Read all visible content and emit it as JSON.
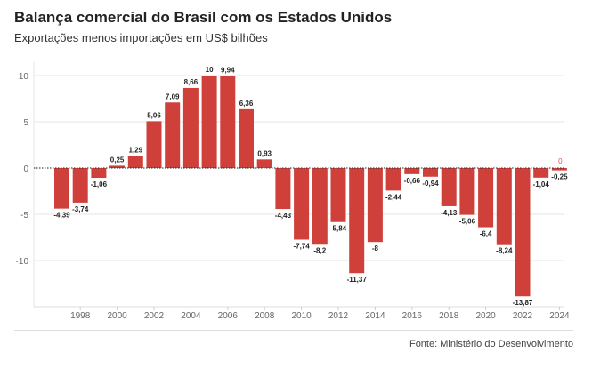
{
  "header": {
    "title": "Balança comercial do Brasil com os Estados Unidos",
    "subtitle": "Exportações menos importações em US$ bilhões"
  },
  "footer": {
    "source": "Fonte: Ministério do Desenvolvimento"
  },
  "colors": {
    "bar": "#d0403a",
    "zero_label": "#d9534f"
  },
  "chart_data": {
    "type": "bar",
    "title": "Balança comercial do Brasil com os Estados Unidos",
    "subtitle": "Exportações menos importações em US$ bilhões",
    "xlabel": "",
    "ylabel": "",
    "categories": [
      1997,
      1998,
      1999,
      2000,
      2001,
      2002,
      2003,
      2004,
      2005,
      2006,
      2007,
      2008,
      2009,
      2010,
      2011,
      2012,
      2013,
      2014,
      2015,
      2016,
      2017,
      2018,
      2019,
      2020,
      2021,
      2022,
      2023,
      2024
    ],
    "values": [
      -4.39,
      -3.74,
      -1.06,
      0.25,
      1.29,
      5.06,
      7.09,
      8.66,
      10,
      9.94,
      6.36,
      0.93,
      -4.43,
      -7.74,
      -8.2,
      -5.84,
      -11.37,
      -8,
      -2.44,
      -0.66,
      -0.94,
      -4.13,
      -5.06,
      -6.4,
      -8.24,
      -13.87,
      -1.04,
      -0.25
    ],
    "data_labels": [
      "-4,39",
      "-3,74",
      "-1,06",
      "0,25",
      "1,29",
      "5,06",
      "7,09",
      "8,66",
      "10",
      "9,94",
      "6,36",
      "0,93",
      "-4,43",
      "-7,74",
      "-8,2",
      "-5,84",
      "-11,37",
      "-8",
      "-2,44",
      "-0,66",
      "-0,94",
      "-4,13",
      "-5,06",
      "-6,4",
      "-8,24",
      "-13,87",
      "-1,04",
      "-0,25"
    ],
    "extra_label": {
      "text": "0",
      "category": 2024
    },
    "x_ticks": [
      {
        "value": 1998,
        "label": "1998"
      },
      {
        "value": 2000,
        "label": "2000"
      },
      {
        "value": 2002,
        "label": "2002"
      },
      {
        "value": 2004,
        "label": "2004"
      },
      {
        "value": 2006,
        "label": "2006"
      },
      {
        "value": 2008,
        "label": "2008"
      },
      {
        "value": 2010,
        "label": "2010"
      },
      {
        "value": 2012,
        "label": "2012"
      },
      {
        "value": 2014,
        "label": "2014"
      },
      {
        "value": 2016,
        "label": "2016"
      },
      {
        "value": 2018,
        "label": "2018"
      },
      {
        "value": 2020,
        "label": "2020"
      },
      {
        "value": 2022,
        "label": "2022"
      },
      {
        "value": 2024,
        "label": "2024"
      }
    ],
    "y_ticks": [
      {
        "value": 10,
        "label": "10"
      },
      {
        "value": 5,
        "label": "5"
      },
      {
        "value": 0,
        "label": "0"
      },
      {
        "value": -5,
        "label": "-5"
      },
      {
        "value": -10,
        "label": "-10"
      }
    ],
    "ylim": [
      -15,
      12
    ],
    "grid": true,
    "legend": "none"
  }
}
